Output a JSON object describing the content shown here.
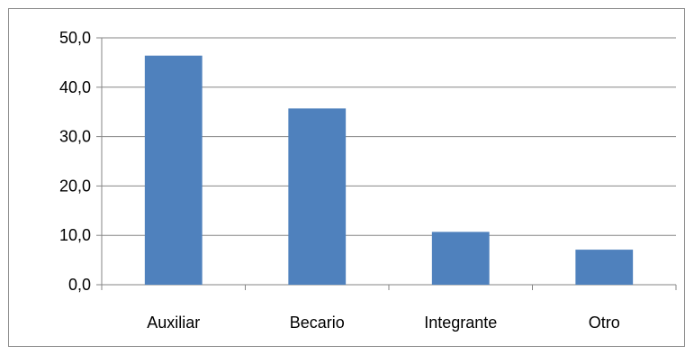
{
  "chart_data": {
    "type": "bar",
    "title": "",
    "xlabel": "",
    "ylabel": "",
    "categories": [
      "Auxiliar",
      "Becario",
      "Integrante",
      "Otro"
    ],
    "values": [
      46.4,
      35.7,
      10.7,
      7.1
    ],
    "ylim": [
      0,
      50
    ],
    "y_ticks": [
      0,
      10,
      20,
      30,
      40,
      50
    ],
    "y_tick_labels": [
      "0,0",
      "10,0",
      "20,0",
      "30,0",
      "40,0",
      "50,0"
    ],
    "grid": true,
    "legend": "none",
    "bar_color": "#4f81bd",
    "grid_color": "#868686"
  }
}
